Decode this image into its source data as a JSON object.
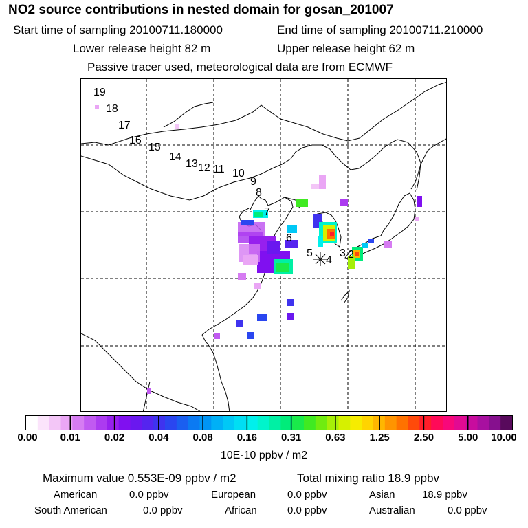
{
  "header": {
    "title": "NO2 source contributions in nested domain for gosan_201007",
    "start_label": "Start time of sampling 20100711.180000",
    "end_label": "End time of sampling 20100711.210000",
    "lower_label": "Lower release height   82 m",
    "upper_label": "Upper release height   62 m",
    "note": "Passive tracer used, meteorological data are from ECMWF"
  },
  "map": {
    "trajectory_labels": [
      "19",
      "18",
      "17",
      "16",
      "15",
      "14",
      "13",
      "12",
      "11",
      "10",
      "9",
      "8",
      "7",
      "6",
      "5",
      "4",
      "3",
      "2"
    ],
    "colors": {
      "coast": "#000000",
      "grid": "#000000"
    }
  },
  "colorbar": {
    "ticks": [
      "0.00",
      "0.01",
      "0.02",
      "0.04",
      "0.08",
      "0.16",
      "0.31",
      "0.63",
      "1.25",
      "2.50",
      "5.00",
      "10.00"
    ],
    "colors": [
      "#ffffff",
      "#fbe4fb",
      "#f3c6f7",
      "#eaa6f5",
      "#d67cf2",
      "#c15af1",
      "#ac3bf0",
      "#9720ee",
      "#8010f0",
      "#6a18ef",
      "#5524ef",
      "#3f33ef",
      "#2a46f0",
      "#1a5ff0",
      "#0b7af2",
      "#0095f4",
      "#00b0f6",
      "#00c8f6",
      "#00def4",
      "#00f0ec",
      "#00f4cc",
      "#00f0a4",
      "#00ec7a",
      "#1aea4a",
      "#40ea22",
      "#70ec10",
      "#a6ef08",
      "#d6f000",
      "#f6ec00",
      "#ffd400",
      "#ffb600",
      "#ff9400",
      "#ff7200",
      "#ff4a0a",
      "#ff1e2a",
      "#ff0a58",
      "#f8087a",
      "#e20a92",
      "#c80c9e",
      "#a810a0",
      "#86108e",
      "#580a5c"
    ],
    "unit_label": "10E-10 ppbv / m2"
  },
  "summary": {
    "max_label": "Maximum value  0.553E-09 ppbv / m2",
    "total_label": "Total mixing ratio       18.9 ppbv",
    "rows": [
      [
        {
          "label": "American",
          "value": "0.0 ppbv"
        },
        {
          "label": "European",
          "value": "0.0 ppbv"
        },
        {
          "label": "Asian",
          "value": "18.9 ppbv"
        }
      ],
      [
        {
          "label": "South American",
          "value": "0.0 ppbv"
        },
        {
          "label": "African",
          "value": "0.0 ppbv"
        },
        {
          "label": "Australian",
          "value": "0.0 ppbv"
        }
      ]
    ]
  }
}
